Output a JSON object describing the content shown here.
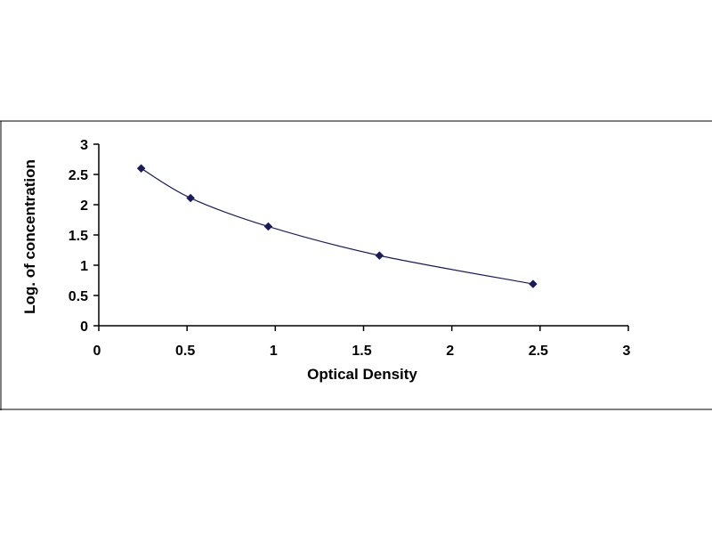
{
  "chart_data": {
    "type": "scatter",
    "title": "",
    "xlabel": "Optical Density",
    "ylabel": "Log. of concentration",
    "xlim": [
      0,
      3
    ],
    "ylim": [
      0,
      3
    ],
    "x_ticks": [
      "0",
      "0.5",
      "1",
      "1.5",
      "2",
      "2.5",
      "3"
    ],
    "y_ticks": [
      "0",
      "0.5",
      "1",
      "1.5",
      "2",
      "2.5",
      "3"
    ],
    "grid": false,
    "legend": "none",
    "trendline": "smooth curve through points",
    "marker": "diamond",
    "colors": {
      "marker": "#1a1a5e",
      "line": "#1a1a5e",
      "axis": "#000000"
    },
    "series": [
      {
        "x": [
          0.24,
          0.52,
          0.96,
          1.59,
          2.46
        ],
        "y": [
          2.6,
          2.11,
          1.64,
          1.16,
          0.69
        ]
      }
    ]
  }
}
